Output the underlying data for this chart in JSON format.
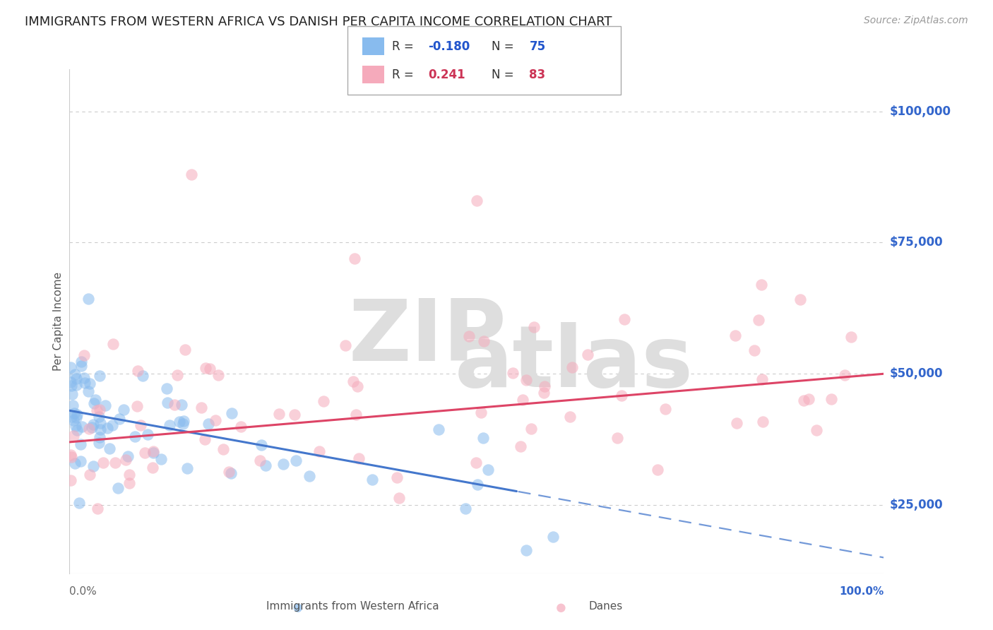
{
  "title": "IMMIGRANTS FROM WESTERN AFRICA VS DANISH PER CAPITA INCOME CORRELATION CHART",
  "source": "Source: ZipAtlas.com",
  "ylabel": "Per Capita Income",
  "y_ticks": [
    25000,
    50000,
    75000,
    100000
  ],
  "y_tick_labels": [
    "$25,000",
    "$50,000",
    "$75,000",
    "$100,000"
  ],
  "legend_series": [
    {
      "label": "Immigrants from Western Africa",
      "color": "#88bbee",
      "line_color": "#4477cc",
      "R": "-0.180",
      "N": "75"
    },
    {
      "label": "Danes",
      "color": "#f5aabb",
      "line_color": "#dd4466",
      "R": "0.241",
      "N": "83"
    }
  ],
  "r_n_color": "#2255cc",
  "pink_r_n_color": "#cc3355",
  "watermark_color": "#dedede",
  "title_color": "#222222",
  "source_color": "#999999",
  "grid_color": "#cccccc",
  "right_tick_color": "#3366cc",
  "xlim": [
    0,
    100
  ],
  "ylim": [
    12000,
    108000
  ],
  "blue_intercept": 43000,
  "blue_slope": -280,
  "pink_intercept": 37000,
  "pink_slope": 130,
  "blue_solid_end": 55,
  "blue_seed": 42,
  "pink_seed": 99
}
